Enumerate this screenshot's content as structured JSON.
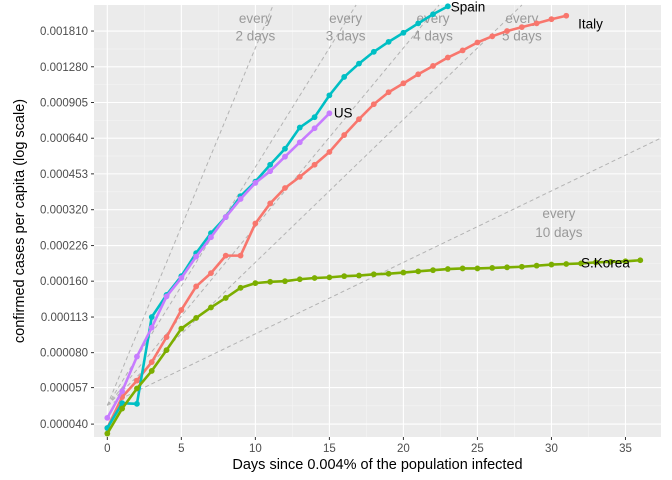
{
  "chart_data": {
    "type": "line",
    "title": "",
    "xlabel": "Days since 0.004% of the population infected",
    "ylabel": "confirmed cases per capita (log scale)",
    "y_scale": "log",
    "xlim": [
      -0.9,
      37.4
    ],
    "ylim": [
      3.53e-05,
      0.00233
    ],
    "x_ticks": [
      0,
      5,
      10,
      15,
      20,
      25,
      30,
      35
    ],
    "x_tick_labels": [
      "0",
      "5",
      "10",
      "15",
      "20",
      "25",
      "30",
      "35"
    ],
    "y_ticks": [
      4e-05,
      5.7e-05,
      8e-05,
      0.000113,
      0.00016,
      0.000226,
      0.00032,
      0.000453,
      0.00064,
      0.000905,
      0.00128,
      0.00181
    ],
    "y_tick_labels": [
      "0.000040",
      "0.000057",
      "0.000080",
      "0.000113",
      "0.000160",
      "0.000226",
      "0.000320",
      "0.000453",
      "0.000640",
      "0.000905",
      "0.001280",
      "0.001810"
    ],
    "grid": true,
    "legend": "none",
    "doubling_base": 4.8e-05,
    "doubling_lines": [
      {
        "days": 2,
        "label": [
          "every",
          "2 days"
        ],
        "label_x": 10,
        "label_y": [
          0.00205,
          0.00173
        ]
      },
      {
        "days": 3,
        "label": [
          "every",
          "3 days"
        ],
        "label_x": 16.1,
        "label_y": [
          0.00205,
          0.00173
        ]
      },
      {
        "days": 4,
        "label": [
          "every",
          "4 days"
        ],
        "label_x": 22,
        "label_y": [
          0.00205,
          0.00173
        ]
      },
      {
        "days": 5,
        "label": [
          "every",
          "5 days"
        ],
        "label_x": 28,
        "label_y": [
          0.00205,
          0.00173
        ]
      },
      {
        "days": 10,
        "label": [
          "every",
          "10 days"
        ],
        "label_x": 30.5,
        "label_y": [
          0.00031,
          0.000258
        ]
      }
    ],
    "series": [
      {
        "name": "Italy",
        "color": "#F8766D",
        "label_x": 31.8,
        "label_y": 0.00195,
        "x": [
          0,
          1,
          2,
          3,
          4,
          5,
          6,
          7,
          8,
          9,
          10,
          11,
          12,
          13,
          14,
          15,
          16,
          17,
          18,
          19,
          20,
          21,
          22,
          23,
          24,
          25,
          26,
          27,
          28,
          29,
          30,
          31
        ],
        "y": [
          3.85e-05,
          5.2e-05,
          6.1e-05,
          7.3e-05,
          9.3e-05,
          0.000121,
          0.000152,
          0.000173,
          0.000205,
          0.000205,
          0.00028,
          0.00034,
          0.000395,
          0.00044,
          0.000495,
          0.00056,
          0.00066,
          0.00077,
          0.00089,
          0.001,
          0.00109,
          0.00119,
          0.00129,
          0.0014,
          0.0015,
          0.00162,
          0.00172,
          0.00181,
          0.00188,
          0.00195,
          0.00203,
          0.0021
        ]
      },
      {
        "name": "Spain",
        "color": "#00BFC4",
        "label_x": 23.2,
        "label_y": 0.0023,
        "x": [
          0,
          1,
          2,
          3,
          4,
          5,
          6,
          7,
          8,
          9,
          10,
          11,
          12,
          13,
          14,
          15,
          16,
          17,
          18,
          19,
          20,
          21,
          22,
          23
        ],
        "y": [
          3.85e-05,
          4.9e-05,
          4.87e-05,
          0.000113,
          0.00014,
          0.000168,
          0.00021,
          0.000255,
          0.000298,
          0.000365,
          0.00042,
          0.000495,
          0.000578,
          0.00071,
          0.000785,
          0.00097,
          0.00116,
          0.00132,
          0.00148,
          0.00163,
          0.00178,
          0.00195,
          0.00213,
          0.0023
        ]
      },
      {
        "name": "US",
        "color": "#C77CFF",
        "label_x": 15.3,
        "label_y": 0.00082,
        "x": [
          0,
          1,
          2,
          3,
          4,
          5,
          6,
          7,
          8,
          9,
          10,
          11,
          12,
          13,
          14,
          15
        ],
        "y": [
          4.25e-05,
          5.5e-05,
          7.7e-05,
          0.000102,
          0.000138,
          0.000165,
          0.000203,
          0.000245,
          0.000298,
          0.000355,
          0.000415,
          0.000465,
          0.000535,
          0.000615,
          0.000705,
          0.000815
        ]
      },
      {
        "name": "S.Korea",
        "color": "#7CAE00",
        "label_x": 32.0,
        "label_y": 0.000192,
        "x": [
          0,
          1,
          2,
          3,
          4,
          5,
          6,
          7,
          8,
          9,
          10,
          11,
          12,
          13,
          14,
          15,
          16,
          17,
          18,
          19,
          20,
          21,
          22,
          23,
          24,
          25,
          26,
          27,
          28,
          29,
          30,
          31,
          32,
          33,
          34,
          35,
          36
        ],
        "y": [
          3.65e-05,
          4.65e-05,
          5.65e-05,
          6.7e-05,
          8.2e-05,
          0.000101,
          0.000112,
          0.000124,
          0.000136,
          0.00015,
          0.000157,
          0.000159,
          0.00016,
          0.000163,
          0.000165,
          0.000166,
          0.000168,
          0.000169,
          0.000171,
          0.000172,
          0.000174,
          0.000176,
          0.000178,
          0.00018,
          0.000181,
          0.000181,
          0.000182,
          0.000183,
          0.000184,
          0.000186,
          0.000188,
          0.000189,
          0.00019,
          0.000192,
          0.000193,
          0.000194,
          0.000196
        ]
      }
    ]
  }
}
